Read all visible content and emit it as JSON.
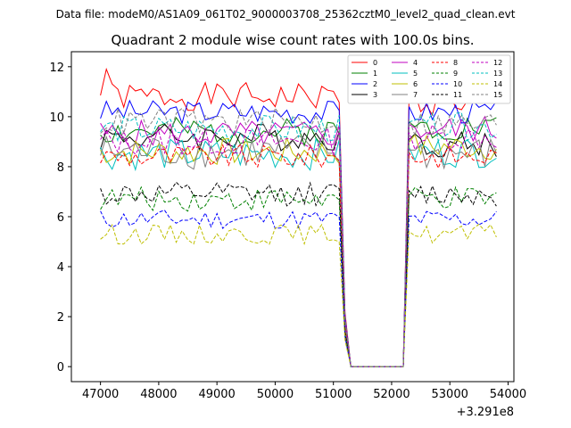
{
  "chart_data": {
    "type": "line",
    "suptitle": "Data file: modeM0/AS1A09_061T02_9000003708_25362cztM0_level2_quad_clean.evt",
    "title": "Quadrant 2 module wise count rates with 100.0s bins.",
    "xlabel": "",
    "ylabel": "",
    "x_offset_label": "+3.291e8",
    "xlim": [
      46500,
      54100
    ],
    "ylim": [
      -0.6,
      12.6
    ],
    "xticks": [
      47000,
      48000,
      49000,
      50000,
      51000,
      52000,
      53000,
      54000
    ],
    "xtick_labels": [
      "47000",
      "48000",
      "49000",
      "50000",
      "51000",
      "52000",
      "53000",
      "54000"
    ],
    "yticks": [
      0,
      2,
      4,
      6,
      8,
      10,
      12
    ],
    "ytick_labels": [
      "0",
      "2",
      "4",
      "6",
      "8",
      "10",
      "12"
    ],
    "x_start": 47000,
    "x_step": 100,
    "gap": {
      "start": 51300,
      "end": 52200
    },
    "x_end": 53800,
    "legend_position": "top-right",
    "series": [
      {
        "name": "0",
        "color": "#ff0000",
        "dash": "solid",
        "level_before": 10.8,
        "level_after": 10.6,
        "noise": 0.35,
        "seed": 1,
        "peak_before": 11.9
      },
      {
        "name": "1",
        "color": "#008000",
        "dash": "solid",
        "level_before": 9.4,
        "level_after": 9.6,
        "noise": 0.35,
        "seed": 2
      },
      {
        "name": "2",
        "color": "#0000ff",
        "dash": "solid",
        "level_before": 10.2,
        "level_after": 10.2,
        "noise": 0.3,
        "seed": 3
      },
      {
        "name": "3",
        "color": "#000000",
        "dash": "solid",
        "level_before": 9.2,
        "level_after": 8.9,
        "noise": 0.35,
        "seed": 4
      },
      {
        "name": "4",
        "color": "#c000c0",
        "dash": "solid",
        "level_before": 9.3,
        "level_after": 9.5,
        "noise": 0.35,
        "seed": 5
      },
      {
        "name": "5",
        "color": "#00bfbf",
        "dash": "solid",
        "level_before": 8.5,
        "level_after": 8.6,
        "noise": 0.4,
        "seed": 6
      },
      {
        "name": "6",
        "color": "#bfbf00",
        "dash": "solid",
        "level_before": 8.6,
        "level_after": 8.8,
        "noise": 0.35,
        "seed": 7
      },
      {
        "name": "7",
        "color": "#808080",
        "dash": "solid",
        "level_before": 8.6,
        "level_after": 8.5,
        "noise": 0.45,
        "seed": 8
      },
      {
        "name": "8",
        "color": "#ff0000",
        "dash": "dashed",
        "level_before": 8.4,
        "level_after": 8.4,
        "noise": 0.3,
        "seed": 9
      },
      {
        "name": "9",
        "color": "#008000",
        "dash": "dashed",
        "level_before": 6.7,
        "level_after": 6.7,
        "noise": 0.3,
        "seed": 10
      },
      {
        "name": "10",
        "color": "#0000ff",
        "dash": "dashed",
        "level_before": 5.9,
        "level_after": 5.9,
        "noise": 0.25,
        "seed": 11
      },
      {
        "name": "11",
        "color": "#000000",
        "dash": "dashed",
        "level_before": 6.9,
        "level_after": 6.9,
        "noise": 0.3,
        "seed": 12
      },
      {
        "name": "12",
        "color": "#c000c0",
        "dash": "dashed",
        "level_before": 9.0,
        "level_after": 9.2,
        "noise": 0.35,
        "seed": 13
      },
      {
        "name": "13",
        "color": "#00bfbf",
        "dash": "dashed",
        "level_before": 9.5,
        "level_after": 9.6,
        "noise": 0.35,
        "seed": 14
      },
      {
        "name": "14",
        "color": "#bfbf00",
        "dash": "dashed",
        "level_before": 5.3,
        "level_after": 5.3,
        "noise": 0.25,
        "seed": 15
      },
      {
        "name": "15",
        "color": "#808080",
        "dash": "dashed",
        "level_before": 9.8,
        "level_after": 9.7,
        "noise": 0.35,
        "seed": 16
      }
    ]
  }
}
